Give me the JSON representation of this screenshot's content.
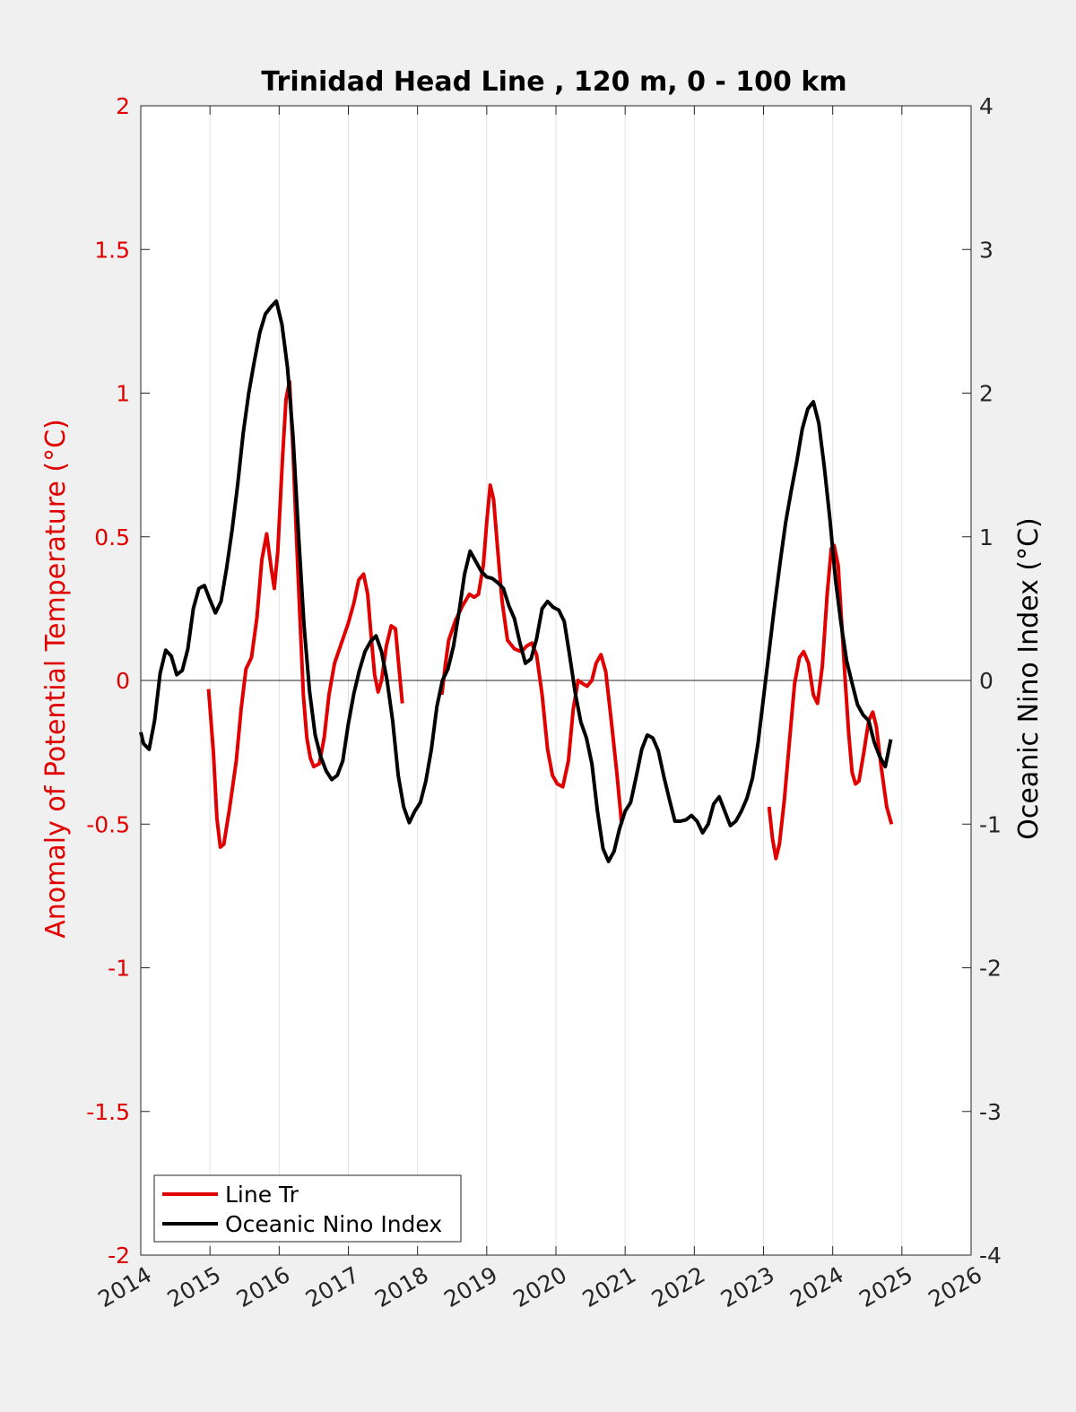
{
  "chart_data": {
    "type": "line",
    "title": "Trinidad Head Line , 120 m, 0 - 100 km",
    "xlim": [
      2014,
      2026
    ],
    "x_ticks": [
      "2014",
      "2015",
      "2016",
      "2017",
      "2018",
      "2019",
      "2020",
      "2021",
      "2022",
      "2023",
      "2024",
      "2025",
      "2026"
    ],
    "y_left": {
      "label": "Anomaly of Potential Temperature (°C)",
      "ylim": [
        -2,
        2
      ],
      "ticks": [
        "-2",
        "-1.5",
        "-1",
        "-0.5",
        "0",
        "0.5",
        "1",
        "1.5",
        "2"
      ],
      "color": "#e00000"
    },
    "y_right": {
      "label": "Oceanic Nino Index (°C)",
      "ylim": [
        -4,
        4
      ],
      "ticks": [
        "-4",
        "-3",
        "-2",
        "-1",
        "0",
        "1",
        "2",
        "3",
        "4"
      ],
      "color": "#000000"
    },
    "grid": "vertical",
    "zero_line": true,
    "legend_position": "bottom-left",
    "series": [
      {
        "name": "Line Tr",
        "axis": "left",
        "color": "#e00000",
        "segments": [
          [
            [
              2014.98,
              -0.03
            ],
            [
              2015.05,
              -0.25
            ],
            [
              2015.1,
              -0.48
            ],
            [
              2015.15,
              -0.58
            ],
            [
              2015.2,
              -0.57
            ],
            [
              2015.28,
              -0.45
            ],
            [
              2015.38,
              -0.28
            ],
            [
              2015.45,
              -0.1
            ],
            [
              2015.52,
              0.04
            ],
            [
              2015.6,
              0.08
            ],
            [
              2015.68,
              0.22
            ],
            [
              2015.75,
              0.42
            ],
            [
              2015.82,
              0.51
            ],
            [
              2015.88,
              0.4
            ],
            [
              2015.93,
              0.32
            ],
            [
              2015.98,
              0.45
            ],
            [
              2016.05,
              0.78
            ],
            [
              2016.1,
              0.98
            ],
            [
              2016.15,
              1.04
            ],
            [
              2016.2,
              0.8
            ],
            [
              2016.25,
              0.5
            ],
            [
              2016.3,
              0.22
            ],
            [
              2016.35,
              -0.05
            ],
            [
              2016.4,
              -0.2
            ],
            [
              2016.45,
              -0.27
            ],
            [
              2016.5,
              -0.3
            ],
            [
              2016.58,
              -0.29
            ],
            [
              2016.65,
              -0.2
            ],
            [
              2016.72,
              -0.05
            ],
            [
              2016.8,
              0.06
            ],
            [
              2016.9,
              0.13
            ],
            [
              2017.0,
              0.2
            ],
            [
              2017.08,
              0.27
            ],
            [
              2017.15,
              0.35
            ],
            [
              2017.22,
              0.37
            ],
            [
              2017.28,
              0.3
            ],
            [
              2017.33,
              0.15
            ],
            [
              2017.38,
              0.02
            ],
            [
              2017.43,
              -0.04
            ],
            [
              2017.48,
              0.0
            ],
            [
              2017.55,
              0.12
            ],
            [
              2017.62,
              0.19
            ],
            [
              2017.68,
              0.18
            ],
            [
              2017.73,
              0.05
            ],
            [
              2017.78,
              -0.08
            ]
          ],
          [
            [
              2018.35,
              -0.05
            ],
            [
              2018.4,
              0.05
            ],
            [
              2018.45,
              0.14
            ],
            [
              2018.55,
              0.21
            ],
            [
              2018.65,
              0.26
            ],
            [
              2018.75,
              0.3
            ],
            [
              2018.82,
              0.29
            ],
            [
              2018.88,
              0.3
            ],
            [
              2018.95,
              0.4
            ],
            [
              2019.0,
              0.55
            ],
            [
              2019.05,
              0.68
            ],
            [
              2019.1,
              0.63
            ],
            [
              2019.15,
              0.48
            ],
            [
              2019.22,
              0.28
            ],
            [
              2019.3,
              0.14
            ],
            [
              2019.4,
              0.11
            ],
            [
              2019.5,
              0.1
            ],
            [
              2019.58,
              0.12
            ],
            [
              2019.65,
              0.13
            ],
            [
              2019.72,
              0.09
            ],
            [
              2019.8,
              -0.05
            ],
            [
              2019.88,
              -0.24
            ],
            [
              2019.95,
              -0.33
            ],
            [
              2020.02,
              -0.36
            ],
            [
              2020.1,
              -0.37
            ],
            [
              2020.18,
              -0.28
            ],
            [
              2020.25,
              -0.1
            ],
            [
              2020.32,
              0.0
            ],
            [
              2020.38,
              -0.01
            ],
            [
              2020.45,
              -0.02
            ],
            [
              2020.52,
              0.0
            ],
            [
              2020.58,
              0.06
            ],
            [
              2020.65,
              0.09
            ],
            [
              2020.72,
              0.03
            ],
            [
              2020.8,
              -0.14
            ],
            [
              2020.88,
              -0.32
            ],
            [
              2020.95,
              -0.5
            ]
          ],
          [
            [
              2023.08,
              -0.44
            ],
            [
              2023.13,
              -0.55
            ],
            [
              2023.18,
              -0.62
            ],
            [
              2023.23,
              -0.57
            ],
            [
              2023.3,
              -0.42
            ],
            [
              2023.38,
              -0.2
            ],
            [
              2023.45,
              -0.01
            ],
            [
              2023.52,
              0.08
            ],
            [
              2023.58,
              0.1
            ],
            [
              2023.65,
              0.06
            ],
            [
              2023.72,
              -0.05
            ],
            [
              2023.78,
              -0.08
            ],
            [
              2023.85,
              0.05
            ],
            [
              2023.92,
              0.3
            ],
            [
              2023.98,
              0.46
            ],
            [
              2024.02,
              0.47
            ],
            [
              2024.08,
              0.4
            ],
            [
              2024.13,
              0.2
            ],
            [
              2024.18,
              0.0
            ],
            [
              2024.23,
              -0.18
            ],
            [
              2024.28,
              -0.32
            ],
            [
              2024.33,
              -0.36
            ],
            [
              2024.38,
              -0.35
            ],
            [
              2024.45,
              -0.25
            ],
            [
              2024.52,
              -0.14
            ],
            [
              2024.58,
              -0.11
            ],
            [
              2024.63,
              -0.16
            ],
            [
              2024.7,
              -0.3
            ],
            [
              2024.78,
              -0.44
            ],
            [
              2024.85,
              -0.5
            ]
          ]
        ]
      },
      {
        "name": "Oceanic Nino Index",
        "axis": "right",
        "color": "#000000",
        "segments": [
          [
            [
              2014.0,
              -0.36
            ],
            [
              2014.04,
              -0.44
            ],
            [
              2014.12,
              -0.48
            ],
            [
              2014.2,
              -0.28
            ],
            [
              2014.28,
              0.05
            ],
            [
              2014.36,
              0.21
            ],
            [
              2014.44,
              0.17
            ],
            [
              2014.52,
              0.04
            ],
            [
              2014.6,
              0.07
            ],
            [
              2014.68,
              0.22
            ],
            [
              2014.76,
              0.5
            ],
            [
              2014.84,
              0.64
            ],
            [
              2014.92,
              0.66
            ],
            [
              2015.0,
              0.56
            ],
            [
              2015.08,
              0.47
            ],
            [
              2015.16,
              0.55
            ],
            [
              2015.24,
              0.78
            ],
            [
              2015.32,
              1.05
            ],
            [
              2015.4,
              1.36
            ],
            [
              2015.48,
              1.72
            ],
            [
              2015.56,
              2.0
            ],
            [
              2015.64,
              2.22
            ],
            [
              2015.72,
              2.42
            ],
            [
              2015.8,
              2.55
            ],
            [
              2015.88,
              2.6
            ],
            [
              2015.96,
              2.64
            ],
            [
              2016.04,
              2.48
            ],
            [
              2016.12,
              2.18
            ],
            [
              2016.2,
              1.7
            ],
            [
              2016.28,
              1.02
            ],
            [
              2016.36,
              0.38
            ],
            [
              2016.44,
              -0.08
            ],
            [
              2016.52,
              -0.38
            ],
            [
              2016.6,
              -0.53
            ],
            [
              2016.68,
              -0.63
            ],
            [
              2016.76,
              -0.69
            ],
            [
              2016.84,
              -0.66
            ],
            [
              2016.92,
              -0.56
            ],
            [
              2017.0,
              -0.3
            ],
            [
              2017.08,
              -0.09
            ],
            [
              2017.16,
              0.07
            ],
            [
              2017.24,
              0.2
            ],
            [
              2017.32,
              0.27
            ],
            [
              2017.4,
              0.31
            ],
            [
              2017.48,
              0.2
            ],
            [
              2017.56,
              0.0
            ],
            [
              2017.64,
              -0.28
            ],
            [
              2017.72,
              -0.66
            ],
            [
              2017.8,
              -0.88
            ],
            [
              2017.88,
              -0.99
            ],
            [
              2017.96,
              -0.91
            ],
            [
              2018.04,
              -0.85
            ],
            [
              2018.12,
              -0.7
            ],
            [
              2018.2,
              -0.48
            ],
            [
              2018.28,
              -0.18
            ],
            [
              2018.36,
              0.0
            ],
            [
              2018.44,
              0.08
            ],
            [
              2018.52,
              0.24
            ],
            [
              2018.6,
              0.48
            ],
            [
              2018.68,
              0.74
            ],
            [
              2018.76,
              0.9
            ],
            [
              2018.84,
              0.83
            ],
            [
              2018.92,
              0.76
            ],
            [
              2019.0,
              0.72
            ],
            [
              2019.08,
              0.71
            ],
            [
              2019.16,
              0.68
            ],
            [
              2019.24,
              0.64
            ],
            [
              2019.32,
              0.52
            ],
            [
              2019.4,
              0.43
            ],
            [
              2019.48,
              0.26
            ],
            [
              2019.56,
              0.12
            ],
            [
              2019.64,
              0.15
            ],
            [
              2019.72,
              0.29
            ],
            [
              2019.8,
              0.5
            ],
            [
              2019.88,
              0.55
            ],
            [
              2019.96,
              0.51
            ],
            [
              2020.04,
              0.49
            ],
            [
              2020.12,
              0.41
            ],
            [
              2020.2,
              0.17
            ],
            [
              2020.28,
              -0.09
            ],
            [
              2020.36,
              -0.29
            ],
            [
              2020.44,
              -0.4
            ],
            [
              2020.52,
              -0.58
            ],
            [
              2020.6,
              -0.91
            ],
            [
              2020.68,
              -1.17
            ],
            [
              2020.76,
              -1.26
            ],
            [
              2020.84,
              -1.19
            ],
            [
              2020.92,
              -1.03
            ],
            [
              2021.0,
              -0.91
            ],
            [
              2021.08,
              -0.85
            ],
            [
              2021.16,
              -0.67
            ],
            [
              2021.24,
              -0.48
            ],
            [
              2021.32,
              -0.38
            ],
            [
              2021.4,
              -0.4
            ],
            [
              2021.48,
              -0.49
            ],
            [
              2021.56,
              -0.67
            ],
            [
              2021.64,
              -0.83
            ],
            [
              2021.72,
              -0.98
            ],
            [
              2021.8,
              -0.98
            ],
            [
              2021.88,
              -0.97
            ],
            [
              2021.96,
              -0.94
            ],
            [
              2022.04,
              -0.98
            ],
            [
              2022.12,
              -1.06
            ],
            [
              2022.2,
              -1.0
            ],
            [
              2022.28,
              -0.86
            ],
            [
              2022.36,
              -0.81
            ],
            [
              2022.44,
              -0.91
            ],
            [
              2022.52,
              -1.01
            ],
            [
              2022.6,
              -0.98
            ],
            [
              2022.68,
              -0.91
            ],
            [
              2022.76,
              -0.82
            ],
            [
              2022.84,
              -0.68
            ],
            [
              2022.92,
              -0.44
            ],
            [
              2023.0,
              -0.12
            ],
            [
              2023.08,
              0.2
            ],
            [
              2023.16,
              0.52
            ],
            [
              2023.24,
              0.82
            ],
            [
              2023.32,
              1.1
            ],
            [
              2023.4,
              1.32
            ],
            [
              2023.48,
              1.52
            ],
            [
              2023.56,
              1.75
            ],
            [
              2023.64,
              1.89
            ],
            [
              2023.72,
              1.94
            ],
            [
              2023.8,
              1.79
            ],
            [
              2023.88,
              1.48
            ],
            [
              2023.96,
              1.12
            ],
            [
              2024.04,
              0.7
            ],
            [
              2024.12,
              0.4
            ],
            [
              2024.2,
              0.14
            ],
            [
              2024.28,
              -0.02
            ],
            [
              2024.36,
              -0.17
            ],
            [
              2024.44,
              -0.24
            ],
            [
              2024.52,
              -0.28
            ],
            [
              2024.6,
              -0.43
            ],
            [
              2024.68,
              -0.53
            ],
            [
              2024.76,
              -0.6
            ],
            [
              2024.84,
              -0.41
            ]
          ]
        ]
      }
    ]
  },
  "legend": {
    "items": [
      "Line Tr",
      "Oceanic Nino Index"
    ]
  }
}
